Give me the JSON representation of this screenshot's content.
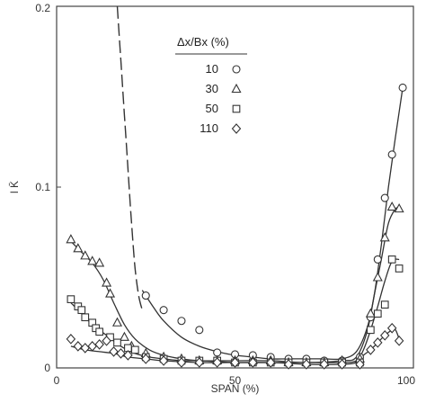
{
  "chart_data": {
    "type": "line",
    "xlabel": "SPAN (%)",
    "ylabel": "l K̄",
    "xlim": [
      0,
      100
    ],
    "ylim": [
      0,
      0.2
    ],
    "x_ticks": [
      {
        "value": 0,
        "label": "0"
      },
      {
        "value": 50,
        "label": "50"
      },
      {
        "value": 100,
        "label": "100"
      }
    ],
    "y_ticks": [
      {
        "value": 0,
        "label": "0"
      },
      {
        "value": 0.1,
        "label": "0.1"
      },
      {
        "value": 0.2,
        "label": "0.2"
      }
    ],
    "grid": false,
    "legend": {
      "placement": "top-center",
      "title": "Δx/Bx (%)",
      "entries": [
        {
          "label": "10",
          "marker": "circle"
        },
        {
          "label": "30",
          "marker": "triangle"
        },
        {
          "label": "50",
          "marker": "square"
        },
        {
          "label": "110",
          "marker": "diamond"
        }
      ]
    },
    "series": [
      {
        "name": "10",
        "marker": "circle",
        "points": [
          [
            25,
            0.04
          ],
          [
            30,
            0.032
          ],
          [
            35,
            0.026
          ],
          [
            40,
            0.021
          ],
          [
            45,
            0.0085
          ],
          [
            50,
            0.0075
          ],
          [
            55,
            0.007
          ],
          [
            60,
            0.006
          ],
          [
            65,
            0.005
          ],
          [
            70,
            0.005
          ],
          [
            75,
            0.004
          ],
          [
            80,
            0.004
          ],
          [
            85,
            0.006
          ],
          [
            88,
            0.028
          ],
          [
            90,
            0.06
          ],
          [
            92,
            0.094
          ],
          [
            94,
            0.118
          ],
          [
            97,
            0.155
          ]
        ],
        "curve": [
          [
            24,
            0.043
          ],
          [
            27,
            0.034
          ],
          [
            30,
            0.026
          ],
          [
            35,
            0.017
          ],
          [
            40,
            0.012
          ],
          [
            45,
            0.009
          ],
          [
            50,
            0.007
          ],
          [
            55,
            0.006
          ],
          [
            60,
            0.005
          ],
          [
            65,
            0.005
          ],
          [
            70,
            0.005
          ],
          [
            75,
            0.005
          ],
          [
            80,
            0.005
          ],
          [
            84,
            0.009
          ],
          [
            87,
            0.022
          ],
          [
            89,
            0.04
          ],
          [
            91,
            0.068
          ],
          [
            93,
            0.1
          ],
          [
            95,
            0.128
          ],
          [
            97,
            0.155
          ]
        ]
      },
      {
        "name": "30",
        "marker": "triangle",
        "points": [
          [
            4,
            0.071
          ],
          [
            6,
            0.066
          ],
          [
            8,
            0.062
          ],
          [
            10,
            0.059
          ],
          [
            12,
            0.058
          ],
          [
            14,
            0.047
          ],
          [
            15,
            0.041
          ],
          [
            17,
            0.025
          ],
          [
            19,
            0.017
          ],
          [
            21,
            0.012
          ],
          [
            25,
            0.008
          ],
          [
            30,
            0.006
          ],
          [
            35,
            0.005
          ],
          [
            40,
            0.004
          ],
          [
            45,
            0.004
          ],
          [
            50,
            0.004
          ],
          [
            55,
            0.004
          ],
          [
            60,
            0.004
          ],
          [
            65,
            0.003
          ],
          [
            70,
            0.003
          ],
          [
            75,
            0.003
          ],
          [
            80,
            0.004
          ],
          [
            85,
            0.005
          ],
          [
            88,
            0.03
          ],
          [
            90,
            0.05
          ],
          [
            92,
            0.072
          ],
          [
            94,
            0.089
          ],
          [
            96,
            0.088
          ]
        ],
        "curve": [
          [
            4,
            0.07
          ],
          [
            7,
            0.064
          ],
          [
            10,
            0.058
          ],
          [
            13,
            0.049
          ],
          [
            16,
            0.036
          ],
          [
            19,
            0.024
          ],
          [
            22,
            0.016
          ],
          [
            26,
            0.01
          ],
          [
            30,
            0.007
          ],
          [
            35,
            0.005
          ],
          [
            40,
            0.004
          ],
          [
            50,
            0.004
          ],
          [
            60,
            0.004
          ],
          [
            70,
            0.003
          ],
          [
            80,
            0.004
          ],
          [
            84,
            0.006
          ],
          [
            87,
            0.02
          ],
          [
            89,
            0.04
          ],
          [
            91,
            0.06
          ],
          [
            93,
            0.08
          ],
          [
            95,
            0.088
          ],
          [
            96,
            0.088
          ]
        ]
      },
      {
        "name": "50",
        "marker": "square",
        "points": [
          [
            4,
            0.038
          ],
          [
            6,
            0.034
          ],
          [
            7,
            0.032
          ],
          [
            8,
            0.028
          ],
          [
            10,
            0.025
          ],
          [
            11,
            0.022
          ],
          [
            12,
            0.02
          ],
          [
            15,
            0.017
          ],
          [
            17,
            0.014
          ],
          [
            20,
            0.011
          ],
          [
            22,
            0.01
          ],
          [
            25,
            0.006
          ],
          [
            30,
            0.005
          ],
          [
            35,
            0.004
          ],
          [
            40,
            0.004
          ],
          [
            45,
            0.004
          ],
          [
            50,
            0.003
          ],
          [
            55,
            0.003
          ],
          [
            60,
            0.003
          ],
          [
            65,
            0.003
          ],
          [
            70,
            0.003
          ],
          [
            75,
            0.003
          ],
          [
            80,
            0.003
          ],
          [
            85,
            0.003
          ],
          [
            88,
            0.021
          ],
          [
            90,
            0.03
          ],
          [
            92,
            0.035
          ],
          [
            94,
            0.06
          ],
          [
            96,
            0.055
          ]
        ],
        "curve": [
          [
            4,
            0.036
          ],
          [
            7,
            0.03
          ],
          [
            10,
            0.024
          ],
          [
            14,
            0.018
          ],
          [
            18,
            0.012
          ],
          [
            22,
            0.008
          ],
          [
            26,
            0.006
          ],
          [
            30,
            0.005
          ],
          [
            35,
            0.004
          ],
          [
            40,
            0.004
          ],
          [
            50,
            0.003
          ],
          [
            60,
            0.003
          ],
          [
            70,
            0.003
          ],
          [
            80,
            0.003
          ],
          [
            84,
            0.004
          ],
          [
            86,
            0.01
          ],
          [
            88,
            0.021
          ],
          [
            90,
            0.034
          ],
          [
            92,
            0.048
          ],
          [
            94,
            0.059
          ],
          [
            96,
            0.06
          ]
        ]
      },
      {
        "name": "110",
        "marker": "diamond",
        "points": [
          [
            4,
            0.016
          ],
          [
            6,
            0.012
          ],
          [
            8,
            0.011
          ],
          [
            10,
            0.012
          ],
          [
            12,
            0.013
          ],
          [
            14,
            0.015
          ],
          [
            16,
            0.009
          ],
          [
            18,
            0.008
          ],
          [
            20,
            0.007
          ],
          [
            25,
            0.005
          ],
          [
            30,
            0.004
          ],
          [
            35,
            0.003
          ],
          [
            40,
            0.003
          ],
          [
            45,
            0.003
          ],
          [
            50,
            0.003
          ],
          [
            55,
            0.003
          ],
          [
            60,
            0.003
          ],
          [
            65,
            0.002
          ],
          [
            70,
            0.002
          ],
          [
            75,
            0.002
          ],
          [
            80,
            0.002
          ],
          [
            85,
            0.002
          ],
          [
            88,
            0.01
          ],
          [
            90,
            0.014
          ],
          [
            92,
            0.018
          ],
          [
            94,
            0.022
          ],
          [
            96,
            0.015
          ]
        ],
        "curve": [
          [
            4,
            0.012
          ],
          [
            8,
            0.01
          ],
          [
            12,
            0.009
          ],
          [
            16,
            0.008
          ],
          [
            20,
            0.006
          ],
          [
            25,
            0.005
          ],
          [
            30,
            0.004
          ],
          [
            40,
            0.003
          ],
          [
            50,
            0.003
          ],
          [
            60,
            0.003
          ],
          [
            70,
            0.002
          ],
          [
            80,
            0.002
          ],
          [
            84,
            0.003
          ],
          [
            86,
            0.007
          ],
          [
            88,
            0.01
          ],
          [
            90,
            0.014
          ],
          [
            92,
            0.018
          ],
          [
            94,
            0.021
          ],
          [
            95,
            0.021
          ],
          [
            96,
            0.016
          ]
        ]
      }
    ],
    "dashed_curve": [
      [
        17,
        0.2
      ],
      [
        18,
        0.17
      ],
      [
        19,
        0.14
      ],
      [
        20,
        0.11
      ],
      [
        21,
        0.08
      ],
      [
        22,
        0.055
      ],
      [
        23,
        0.04
      ],
      [
        24,
        0.032
      ]
    ]
  }
}
